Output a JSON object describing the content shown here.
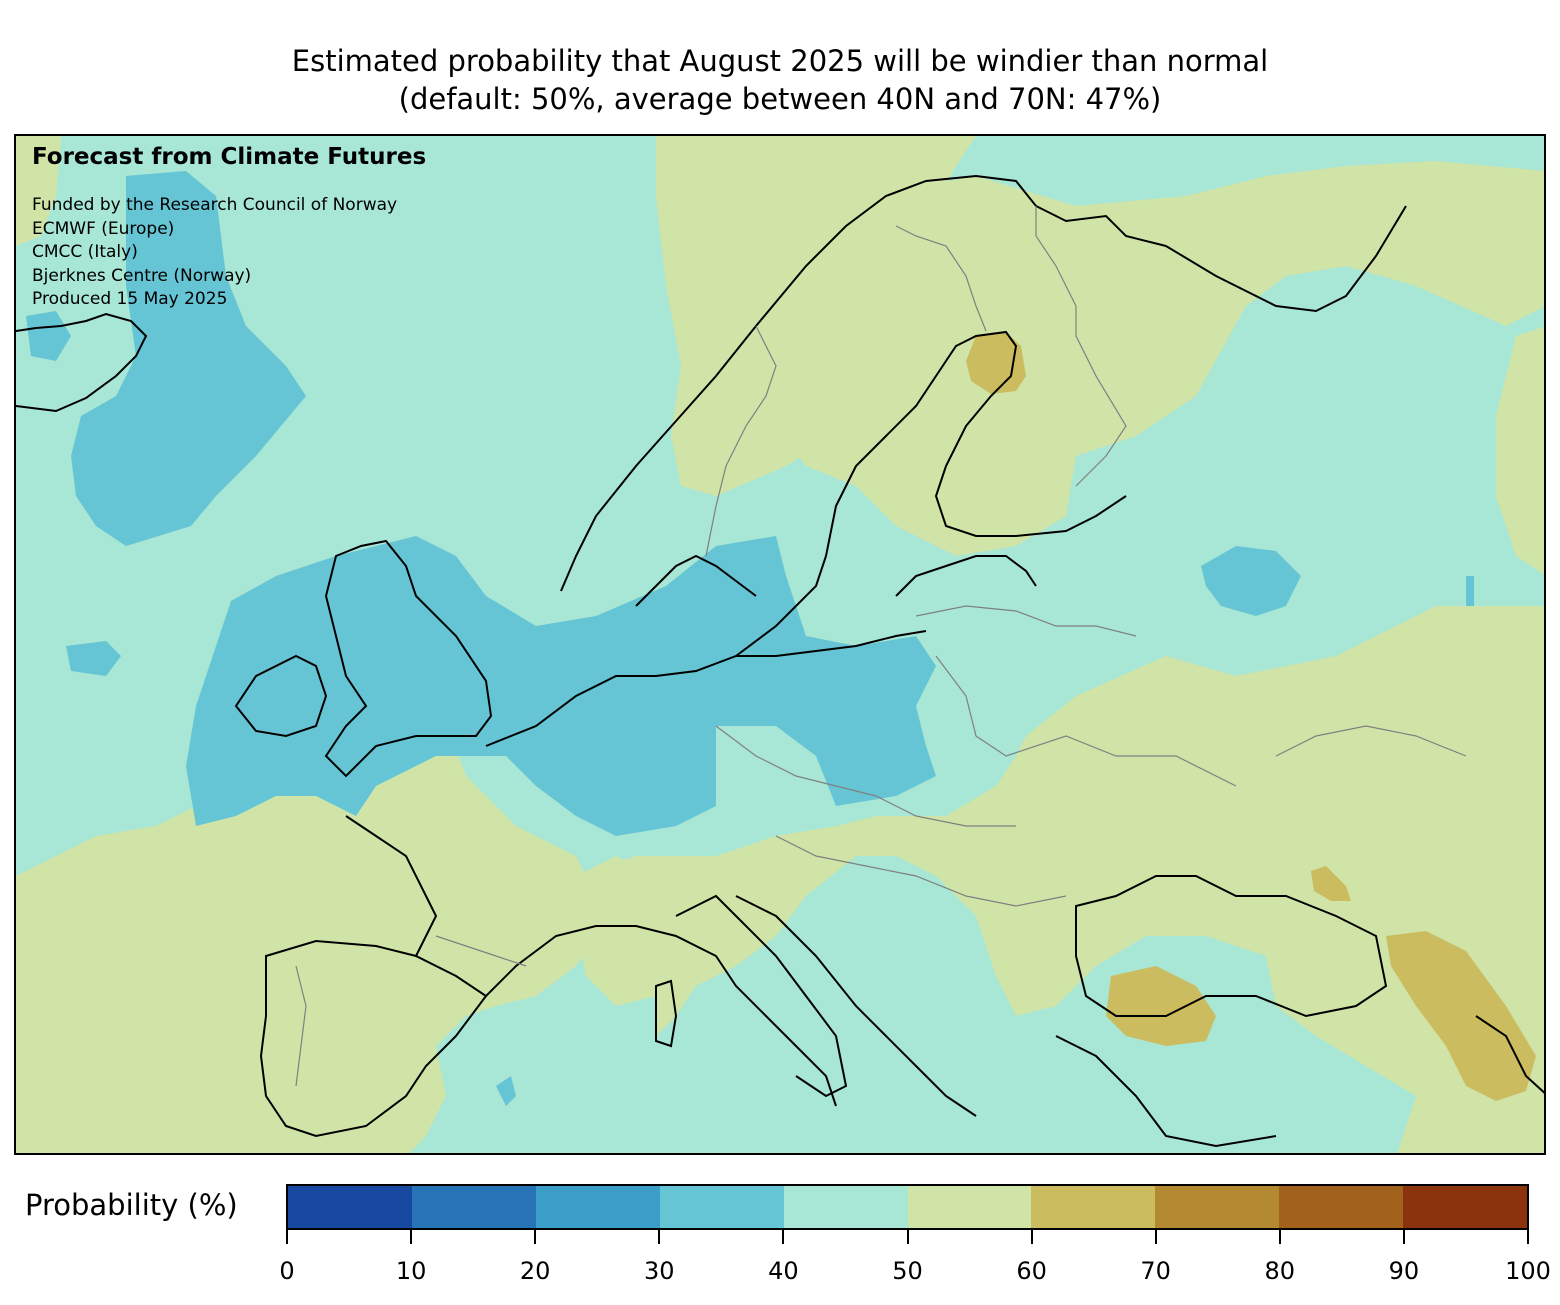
{
  "title": {
    "line1": "Estimated probability that August 2025 will be windier than normal",
    "line2": "(default: 50%, average between 40N and 70N: 47%)"
  },
  "attribution": {
    "heading": "Forecast from Climate Futures",
    "lines": [
      "Funded by the Research Council of Norway",
      "ECMWF (Europe)",
      "CMCC (Italy)",
      "Bjerknes Centre (Norway)",
      "Produced 15 May 2025"
    ]
  },
  "colorbar": {
    "label": "Probability (%)",
    "ticks": [
      "0",
      "10",
      "20",
      "30",
      "40",
      "50",
      "60",
      "70",
      "80",
      "90",
      "100"
    ],
    "bins": [
      {
        "range": "0-10",
        "color": "#1849a0"
      },
      {
        "range": "10-20",
        "color": "#2673b5"
      },
      {
        "range": "20-30",
        "color": "#3b9ec9"
      },
      {
        "range": "30-40",
        "color": "#66c5d5"
      },
      {
        "range": "40-50",
        "color": "#a8e6d5"
      },
      {
        "range": "50-60",
        "color": "#d0e4a8"
      },
      {
        "range": "60-70",
        "color": "#cbbc5f"
      },
      {
        "range": "70-80",
        "color": "#b38a32"
      },
      {
        "range": "80-90",
        "color": "#a2621e"
      },
      {
        "range": "90-100",
        "color": "#8a330c"
      }
    ]
  },
  "map": {
    "region": "Europe",
    "variable": "Probability of windier than normal",
    "month": "August 2025",
    "colors": {
      "land_outline": "#000000",
      "border": "#808080",
      "band_30_40": "#66c5d5",
      "band_40_50": "#a8e6d5",
      "band_50_60": "#d0e4a8",
      "band_60_70": "#cbbc5f"
    },
    "features": [
      {
        "name": "North Atlantic west of Norway",
        "band": "30-40"
      },
      {
        "name": "British Isles / North Sea / Germany",
        "band": "30-40"
      },
      {
        "name": "Scandinavia / Finland",
        "band": "50-60"
      },
      {
        "name": "Northern Finland",
        "band": "60-70"
      },
      {
        "name": "Northern Turkey",
        "band": "60-70"
      },
      {
        "name": "Caucasus",
        "band": "60-70"
      },
      {
        "name": "Ukraine / Southern Russia",
        "band": "50-60"
      },
      {
        "name": "Iberia / Bay of Biscay",
        "band": "50-60"
      }
    ]
  }
}
